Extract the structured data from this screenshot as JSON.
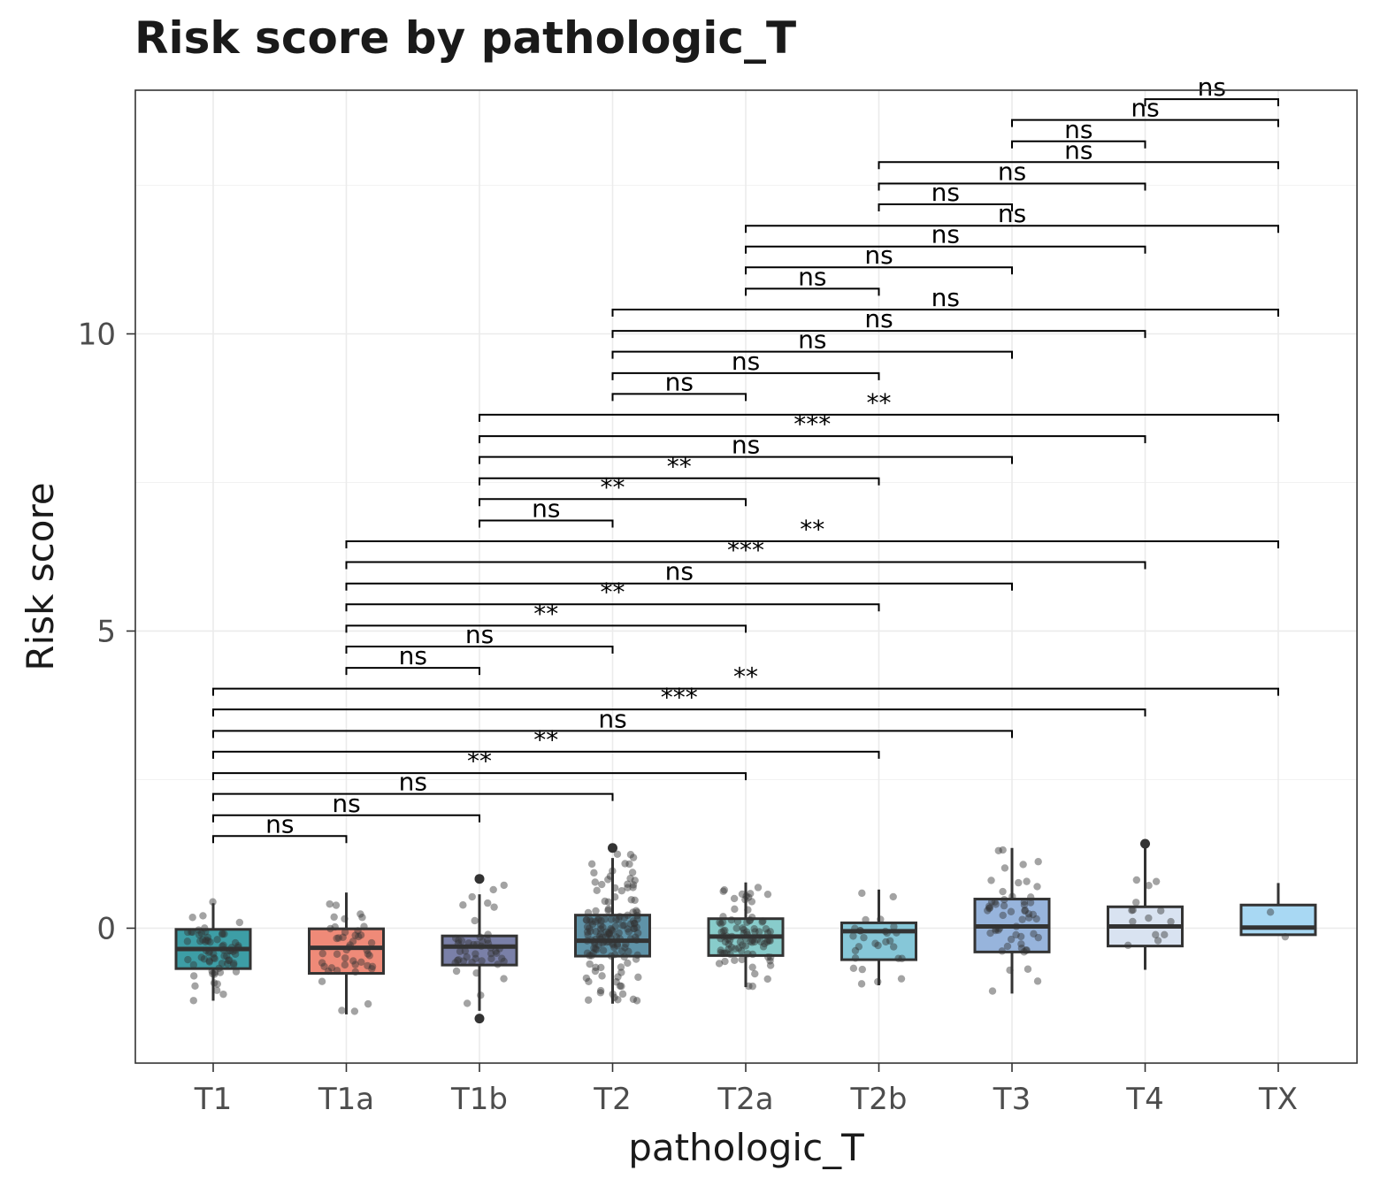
{
  "chart_data": {
    "type": "box",
    "title": "Risk score by pathologic_T",
    "xlabel": "pathologic_T",
    "ylabel": "Risk score",
    "categories": [
      "T1",
      "T1a",
      "T1b",
      "T2",
      "T2a",
      "T2b",
      "T3",
      "T4",
      "TX"
    ],
    "ylim": [
      -2.27,
      14.1
    ],
    "yticks": [
      0,
      5,
      10
    ],
    "grid": true,
    "legend": "none",
    "colors": [
      "#3d9ea6",
      "#ef8a78",
      "#7a80a8",
      "#5f93a8",
      "#88cccb",
      "#86c7d8",
      "#97b4dc",
      "#d9e3f1",
      "#a8d8f3"
    ],
    "boxes": [
      {
        "category": "T1",
        "min": -1.22,
        "q1": -0.68,
        "median": -0.35,
        "q3": -0.02,
        "max": 0.42,
        "outliers": []
      },
      {
        "category": "T1a",
        "min": -1.45,
        "q1": -0.76,
        "median": -0.33,
        "q3": -0.01,
        "max": 0.6,
        "outliers": []
      },
      {
        "category": "T1b",
        "min": -1.39,
        "q1": -0.62,
        "median": -0.31,
        "q3": -0.13,
        "max": 0.57,
        "outliers": [
          0.83,
          -1.52
        ]
      },
      {
        "category": "T2",
        "min": -1.27,
        "q1": -0.47,
        "median": -0.21,
        "q3": 0.22,
        "max": 1.18,
        "outliers": [
          1.35
        ]
      },
      {
        "category": "T2a",
        "min": -0.99,
        "q1": -0.46,
        "median": -0.14,
        "q3": 0.16,
        "max": 0.77,
        "outliers": []
      },
      {
        "category": "T2b",
        "min": -0.96,
        "q1": -0.53,
        "median": -0.05,
        "q3": 0.09,
        "max": 0.65,
        "outliers": []
      },
      {
        "category": "T3",
        "min": -1.1,
        "q1": -0.4,
        "median": 0.03,
        "q3": 0.49,
        "max": 1.35,
        "outliers": []
      },
      {
        "category": "T4",
        "min": -0.7,
        "q1": -0.3,
        "median": 0.03,
        "q3": 0.36,
        "max": 1.42,
        "outliers": [
          1.42
        ]
      },
      {
        "category": "TX",
        "min": -0.11,
        "q1": -0.11,
        "median": 0.01,
        "q3": 0.39,
        "max": 0.76,
        "outliers": []
      }
    ],
    "jitter": [
      {
        "category": "T1",
        "n": 70,
        "range": [
          -1.27,
          0.45
        ]
      },
      {
        "category": "T1a",
        "n": 45,
        "range": [
          -1.45,
          0.6
        ]
      },
      {
        "category": "T1b",
        "n": 45,
        "range": [
          -1.3,
          0.8
        ]
      },
      {
        "category": "T2",
        "n": 150,
        "range": [
          -1.25,
          1.35
        ]
      },
      {
        "category": "T2a",
        "n": 90,
        "range": [
          -0.99,
          0.75
        ]
      },
      {
        "category": "T2b",
        "n": 28,
        "range": [
          -0.96,
          0.68
        ]
      },
      {
        "category": "T3",
        "n": 55,
        "range": [
          -1.1,
          1.35
        ]
      },
      {
        "category": "T4",
        "n": 14,
        "range": [
          -0.7,
          1.42
        ]
      },
      {
        "category": "TX",
        "n": 2,
        "range": [
          -0.22,
          0.76
        ]
      }
    ],
    "comparisons": [
      {
        "group1": "T1",
        "group2": "T1a",
        "y": 1.55,
        "label": "ns"
      },
      {
        "group1": "T1",
        "group2": "T1b",
        "y": 1.9,
        "label": "ns"
      },
      {
        "group1": "T1",
        "group2": "T2",
        "y": 2.26,
        "label": "ns"
      },
      {
        "group1": "T1",
        "group2": "T2a",
        "y": 2.61,
        "label": "**"
      },
      {
        "group1": "T1",
        "group2": "T2b",
        "y": 2.97,
        "label": "**"
      },
      {
        "group1": "T1",
        "group2": "T3",
        "y": 3.32,
        "label": "ns"
      },
      {
        "group1": "T1",
        "group2": "T4",
        "y": 3.68,
        "label": "***"
      },
      {
        "group1": "T1",
        "group2": "TX",
        "y": 4.03,
        "label": "**"
      },
      {
        "group1": "T1a",
        "group2": "T1b",
        "y": 4.38,
        "label": "ns"
      },
      {
        "group1": "T1a",
        "group2": "T2",
        "y": 4.74,
        "label": "ns"
      },
      {
        "group1": "T1a",
        "group2": "T2a",
        "y": 5.09,
        "label": "**"
      },
      {
        "group1": "T1a",
        "group2": "T2b",
        "y": 5.45,
        "label": "**"
      },
      {
        "group1": "T1a",
        "group2": "T3",
        "y": 5.8,
        "label": "ns"
      },
      {
        "group1": "T1a",
        "group2": "T4",
        "y": 6.16,
        "label": "***"
      },
      {
        "group1": "T1a",
        "group2": "TX",
        "y": 6.51,
        "label": "**"
      },
      {
        "group1": "T1b",
        "group2": "T2",
        "y": 6.86,
        "label": "ns"
      },
      {
        "group1": "T1b",
        "group2": "T2a",
        "y": 7.22,
        "label": "**"
      },
      {
        "group1": "T1b",
        "group2": "T2b",
        "y": 7.57,
        "label": "**"
      },
      {
        "group1": "T1b",
        "group2": "T3",
        "y": 7.93,
        "label": "ns"
      },
      {
        "group1": "T1b",
        "group2": "T4",
        "y": 8.28,
        "label": "***"
      },
      {
        "group1": "T1b",
        "group2": "TX",
        "y": 8.64,
        "label": "**"
      },
      {
        "group1": "T2",
        "group2": "T2a",
        "y": 8.99,
        "label": "ns"
      },
      {
        "group1": "T2",
        "group2": "T2b",
        "y": 9.34,
        "label": "ns"
      },
      {
        "group1": "T2",
        "group2": "T3",
        "y": 9.7,
        "label": "ns"
      },
      {
        "group1": "T2",
        "group2": "T4",
        "y": 10.05,
        "label": "ns"
      },
      {
        "group1": "T2",
        "group2": "TX",
        "y": 10.41,
        "label": "ns"
      },
      {
        "group1": "T2a",
        "group2": "T2b",
        "y": 10.76,
        "label": "ns"
      },
      {
        "group1": "T2a",
        "group2": "T3",
        "y": 11.12,
        "label": "ns"
      },
      {
        "group1": "T2a",
        "group2": "T4",
        "y": 11.47,
        "label": "ns"
      },
      {
        "group1": "T2a",
        "group2": "TX",
        "y": 11.82,
        "label": "ns"
      },
      {
        "group1": "T2b",
        "group2": "T3",
        "y": 12.18,
        "label": "ns"
      },
      {
        "group1": "T2b",
        "group2": "T4",
        "y": 12.53,
        "label": "ns"
      },
      {
        "group1": "T2b",
        "group2": "TX",
        "y": 12.89,
        "label": "ns"
      },
      {
        "group1": "T3",
        "group2": "T4",
        "y": 13.24,
        "label": "ns"
      },
      {
        "group1": "T3",
        "group2": "TX",
        "y": 13.6,
        "label": "ns"
      },
      {
        "group1": "T4",
        "group2": "TX",
        "y": 13.95,
        "label": "ns"
      }
    ]
  }
}
